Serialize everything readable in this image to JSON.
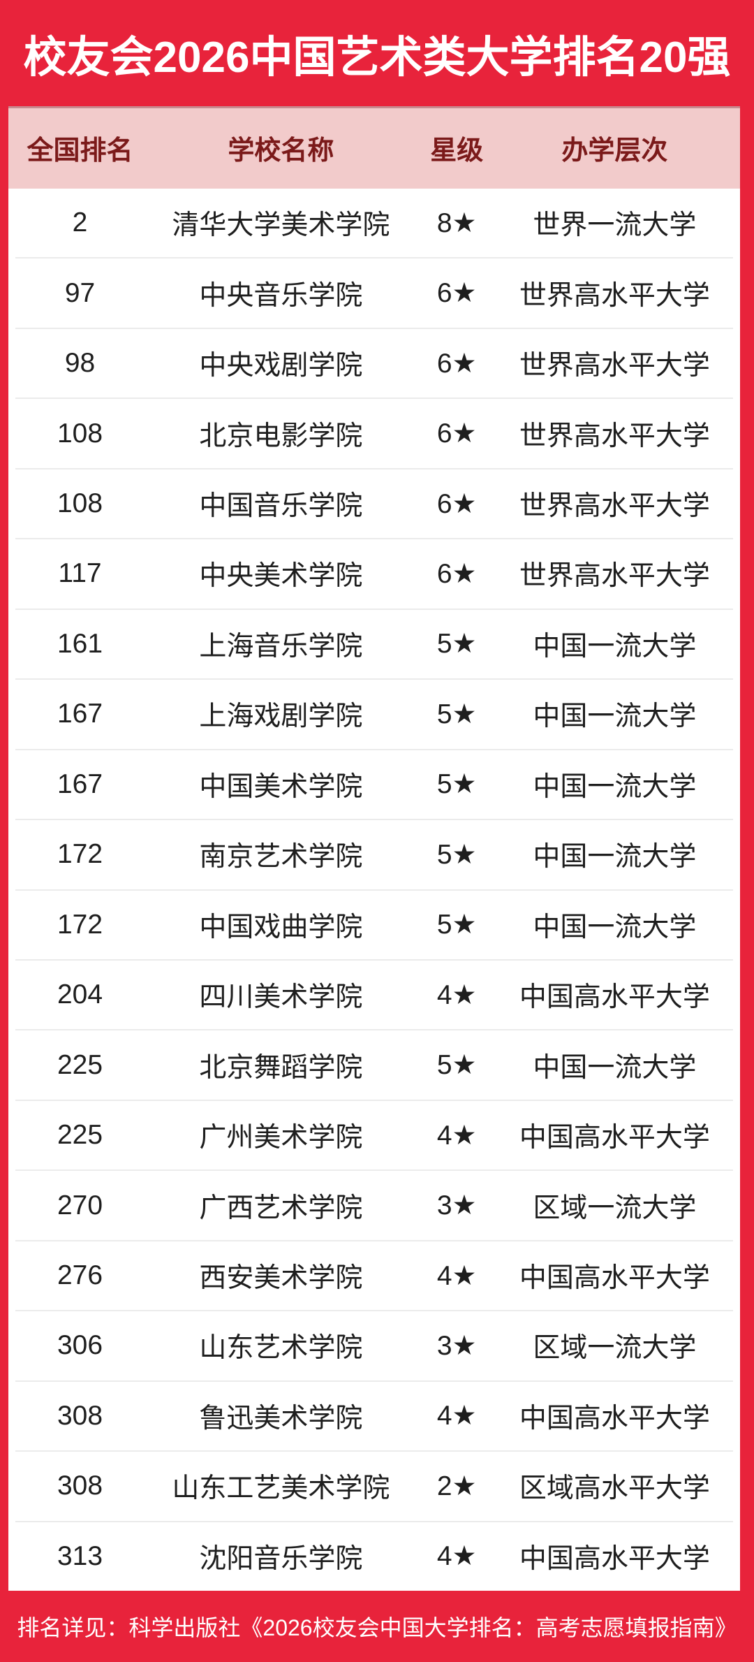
{
  "colors": {
    "background_red": "#E8233B",
    "header_pink": "#F2CBCB",
    "header_text_maroon": "#7B1A1A",
    "row_text": "#1E1E1E",
    "divider": "#EBEBEB",
    "title_text": "#FFFFFF"
  },
  "chart_data": {
    "type": "table",
    "title": "校友会2026中国艺术类大学排名20强",
    "columns": [
      "全国排名",
      "学校名称",
      "星级",
      "办学层次"
    ],
    "rows": [
      [
        "2",
        "清华大学美术学院",
        "8★",
        "世界一流大学"
      ],
      [
        "97",
        "中央音乐学院",
        "6★",
        "世界高水平大学"
      ],
      [
        "98",
        "中央戏剧学院",
        "6★",
        "世界高水平大学"
      ],
      [
        "108",
        "北京电影学院",
        "6★",
        "世界高水平大学"
      ],
      [
        "108",
        "中国音乐学院",
        "6★",
        "世界高水平大学"
      ],
      [
        "117",
        "中央美术学院",
        "6★",
        "世界高水平大学"
      ],
      [
        "161",
        "上海音乐学院",
        "5★",
        "中国一流大学"
      ],
      [
        "167",
        "上海戏剧学院",
        "5★",
        "中国一流大学"
      ],
      [
        "167",
        "中国美术学院",
        "5★",
        "中国一流大学"
      ],
      [
        "172",
        "南京艺术学院",
        "5★",
        "中国一流大学"
      ],
      [
        "172",
        "中国戏曲学院",
        "5★",
        "中国一流大学"
      ],
      [
        "204",
        "四川美术学院",
        "4★",
        "中国高水平大学"
      ],
      [
        "225",
        "北京舞蹈学院",
        "5★",
        "中国一流大学"
      ],
      [
        "225",
        "广州美术学院",
        "4★",
        "中国高水平大学"
      ],
      [
        "270",
        "广西艺术学院",
        "3★",
        "区域一流大学"
      ],
      [
        "276",
        "西安美术学院",
        "4★",
        "中国高水平大学"
      ],
      [
        "306",
        "山东艺术学院",
        "3★",
        "区域一流大学"
      ],
      [
        "308",
        "鲁迅美术学院",
        "4★",
        "中国高水平大学"
      ],
      [
        "308",
        "山东工艺美术学院",
        "2★",
        "区域高水平大学"
      ],
      [
        "313",
        "沈阳音乐学院",
        "4★",
        "中国高水平大学"
      ]
    ],
    "footnote": "排名详见：科学出版社《2026校友会中国大学排名：高考志愿填报指南》",
    "layout": {
      "grid": "horizontal row dividers only",
      "legend": "none"
    }
  }
}
